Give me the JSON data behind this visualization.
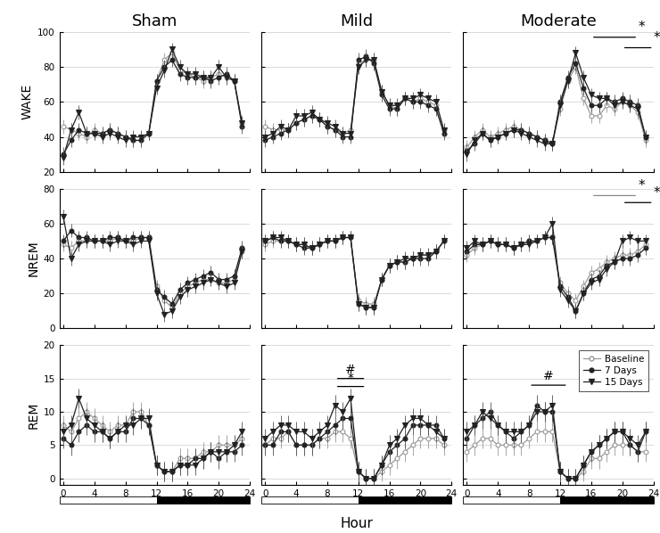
{
  "hours": [
    0,
    1,
    2,
    3,
    4,
    5,
    6,
    7,
    8,
    9,
    10,
    11,
    12,
    13,
    14,
    15,
    16,
    17,
    18,
    19,
    20,
    21,
    22,
    23
  ],
  "col_titles": [
    "Sham",
    "Mild",
    "Moderate"
  ],
  "row_titles": [
    "WAKE",
    "NREM",
    "REM"
  ],
  "series_labels": [
    "Baseline",
    "7 Days",
    "15 Days"
  ],
  "wake_sham_baseline": [
    46,
    44,
    42,
    40,
    44,
    42,
    44,
    42,
    40,
    38,
    38,
    42,
    72,
    84,
    88,
    78,
    76,
    74,
    72,
    74,
    76,
    74,
    72,
    48
  ],
  "wake_sham_7days": [
    30,
    38,
    44,
    42,
    42,
    42,
    44,
    42,
    40,
    38,
    38,
    42,
    72,
    80,
    84,
    76,
    74,
    74,
    74,
    72,
    74,
    76,
    72,
    46
  ],
  "wake_sham_15days": [
    28,
    44,
    54,
    42,
    42,
    40,
    42,
    40,
    38,
    40,
    40,
    42,
    68,
    78,
    90,
    80,
    76,
    76,
    74,
    74,
    80,
    74,
    72,
    48
  ],
  "wake_mild_baseline": [
    46,
    44,
    44,
    44,
    48,
    50,
    52,
    50,
    46,
    44,
    42,
    44,
    82,
    84,
    84,
    66,
    58,
    56,
    62,
    60,
    62,
    60,
    58,
    44
  ],
  "wake_mild_7days": [
    38,
    40,
    42,
    44,
    48,
    50,
    52,
    50,
    46,
    44,
    40,
    40,
    84,
    86,
    82,
    64,
    56,
    56,
    62,
    60,
    60,
    58,
    56,
    42
  ],
  "wake_mild_15days": [
    40,
    42,
    46,
    44,
    52,
    52,
    54,
    50,
    48,
    46,
    42,
    42,
    80,
    84,
    84,
    66,
    58,
    58,
    62,
    62,
    64,
    62,
    60,
    44
  ],
  "wake_mod_baseline": [
    34,
    40,
    44,
    40,
    42,
    44,
    46,
    44,
    42,
    40,
    38,
    36,
    56,
    72,
    80,
    62,
    52,
    52,
    58,
    56,
    60,
    58,
    54,
    38
  ],
  "wake_mod_7days": [
    32,
    36,
    42,
    38,
    40,
    42,
    44,
    44,
    42,
    40,
    38,
    36,
    60,
    74,
    82,
    68,
    58,
    58,
    62,
    60,
    62,
    60,
    58,
    40
  ],
  "wake_mod_15days": [
    30,
    38,
    42,
    38,
    40,
    42,
    44,
    42,
    40,
    38,
    36,
    36,
    58,
    72,
    88,
    74,
    64,
    62,
    62,
    58,
    60,
    58,
    56,
    40
  ],
  "nrem_sham_baseline": [
    48,
    46,
    50,
    50,
    50,
    50,
    50,
    52,
    50,
    50,
    52,
    52,
    24,
    16,
    12,
    20,
    24,
    26,
    28,
    28,
    26,
    26,
    28,
    44
  ],
  "nrem_sham_7days": [
    50,
    56,
    52,
    52,
    50,
    50,
    52,
    52,
    50,
    52,
    52,
    52,
    22,
    18,
    14,
    22,
    26,
    28,
    30,
    32,
    28,
    28,
    30,
    46
  ],
  "nrem_sham_15days": [
    64,
    40,
    48,
    50,
    50,
    50,
    48,
    50,
    50,
    48,
    50,
    50,
    20,
    8,
    10,
    18,
    22,
    24,
    26,
    28,
    26,
    24,
    26,
    44
  ],
  "nrem_mild_baseline": [
    48,
    50,
    50,
    50,
    48,
    48,
    46,
    48,
    50,
    50,
    52,
    52,
    16,
    14,
    14,
    28,
    36,
    38,
    38,
    40,
    42,
    42,
    44,
    50
  ],
  "nrem_mild_7days": [
    50,
    52,
    50,
    50,
    48,
    46,
    46,
    48,
    50,
    50,
    52,
    52,
    14,
    12,
    12,
    28,
    36,
    38,
    38,
    40,
    40,
    40,
    44,
    50
  ],
  "nrem_mild_15days": [
    50,
    52,
    52,
    50,
    48,
    48,
    46,
    48,
    50,
    50,
    52,
    52,
    14,
    12,
    12,
    28,
    36,
    38,
    40,
    40,
    42,
    42,
    44,
    50
  ],
  "nrem_mod_baseline": [
    42,
    46,
    48,
    50,
    48,
    48,
    46,
    48,
    50,
    50,
    52,
    52,
    26,
    20,
    16,
    24,
    32,
    34,
    38,
    40,
    42,
    42,
    44,
    48
  ],
  "nrem_mod_7days": [
    44,
    48,
    48,
    50,
    48,
    48,
    46,
    48,
    50,
    50,
    52,
    52,
    24,
    18,
    10,
    20,
    28,
    30,
    36,
    38,
    40,
    40,
    42,
    46
  ],
  "nrem_mod_15days": [
    46,
    50,
    48,
    50,
    48,
    48,
    46,
    48,
    48,
    50,
    52,
    60,
    22,
    16,
    10,
    20,
    26,
    28,
    34,
    38,
    50,
    52,
    50,
    50
  ],
  "rem_sham_baseline": [
    8,
    7,
    9,
    10,
    9,
    8,
    7,
    8,
    8,
    10,
    10,
    8,
    2,
    1,
    1,
    3,
    3,
    3,
    4,
    4,
    5,
    5,
    5,
    6
  ],
  "rem_sham_7days": [
    6,
    5,
    7,
    8,
    7,
    7,
    6,
    7,
    7,
    9,
    9,
    8,
    2,
    1,
    1,
    2,
    2,
    3,
    3,
    4,
    3,
    4,
    4,
    5
  ],
  "rem_sham_15days": [
    7,
    8,
    12,
    9,
    8,
    7,
    6,
    7,
    8,
    8,
    9,
    9,
    2,
    1,
    1,
    2,
    2,
    2,
    3,
    4,
    4,
    4,
    5,
    7
  ],
  "rem_mild_baseline": [
    5,
    6,
    6,
    7,
    5,
    5,
    5,
    6,
    6,
    7,
    7,
    6,
    1,
    0,
    0,
    1,
    2,
    3,
    4,
    5,
    6,
    6,
    6,
    5
  ],
  "rem_mild_7days": [
    5,
    5,
    7,
    7,
    5,
    5,
    5,
    6,
    7,
    8,
    9,
    9,
    1,
    0,
    0,
    2,
    4,
    5,
    6,
    8,
    8,
    8,
    8,
    6
  ],
  "rem_mild_15days": [
    6,
    7,
    8,
    8,
    7,
    7,
    6,
    7,
    8,
    11,
    10,
    12,
    1,
    0,
    0,
    2,
    5,
    6,
    8,
    9,
    9,
    8,
    7,
    6
  ],
  "rem_mod_baseline": [
    4,
    5,
    6,
    6,
    5,
    5,
    5,
    5,
    6,
    7,
    7,
    7,
    1,
    0,
    0,
    1,
    3,
    3,
    4,
    5,
    5,
    5,
    4,
    4
  ],
  "rem_mod_7days": [
    6,
    8,
    9,
    10,
    8,
    7,
    6,
    7,
    8,
    11,
    10,
    10,
    1,
    0,
    0,
    2,
    4,
    5,
    6,
    7,
    7,
    5,
    4,
    7
  ],
  "rem_mod_15days": [
    7,
    8,
    10,
    9,
    8,
    7,
    7,
    7,
    8,
    10,
    10,
    11,
    1,
    0,
    0,
    2,
    4,
    5,
    6,
    7,
    7,
    6,
    5,
    7
  ],
  "wake_ylim": [
    20,
    100
  ],
  "nrem_ylim": [
    0,
    80
  ],
  "rem_ylim": [
    -1,
    20
  ],
  "wake_yticks": [
    20,
    40,
    60,
    80,
    100
  ],
  "nrem_yticks": [
    0,
    20,
    40,
    60,
    80
  ],
  "rem_yticks": [
    0,
    5,
    10,
    15,
    20
  ],
  "baseline_color": "#999999",
  "days7_color": "#222222",
  "days15_color": "#222222",
  "wake_yerr_baseline": 4,
  "wake_yerr_7days": 4,
  "wake_yerr_15days": 4,
  "nrem_yerr_baseline": 4,
  "nrem_yerr_7days": 4,
  "nrem_yerr_15days": 4,
  "rem_yerr_baseline": 1.5,
  "rem_yerr_7days": 1.5,
  "rem_yerr_15days": 1.5
}
